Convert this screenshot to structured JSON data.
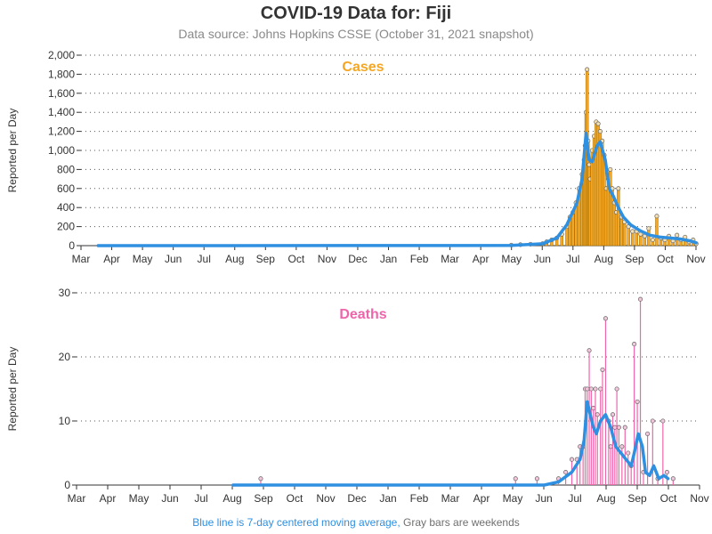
{
  "page": {
    "title": "COVID-19 Data for: Fiji",
    "subtitle": "Data source: Johns Hopkins CSSE (October 31, 2021 snapshot)",
    "footnote_blue": "Blue line is 7-day centered moving average,",
    "footnote_gray": "Gray bars are weekends"
  },
  "colors": {
    "cases": "#f5a623",
    "deaths": "#ee66aa",
    "moving_average": "#2f8fe0",
    "weekend": "#888888",
    "axis": "#333333"
  },
  "chart_data": [
    {
      "type": "bar",
      "title": "Cases",
      "ylabel": "Reported per Day",
      "ylim": [
        0,
        2000
      ],
      "yticks": [
        0,
        200,
        400,
        600,
        800,
        1000,
        1200,
        1400,
        1600,
        1800,
        2000
      ],
      "ytick_labels": [
        "0",
        "200",
        "400",
        "600",
        "800",
        "1,000",
        "1,200",
        "1,400",
        "1,600",
        "1,800",
        "2,000"
      ],
      "xtick_labels": [
        "Mar",
        "Apr",
        "May",
        "Jun",
        "Jul",
        "Aug",
        "Sep",
        "Oct",
        "Nov",
        "Dec",
        "Jan",
        "Feb",
        "Mar",
        "Apr",
        "May",
        "Jun",
        "Jul",
        "Aug",
        "Sep",
        "Oct",
        "Nov"
      ],
      "grid": "horizontal dotted",
      "daily_bars": [
        {
          "date": "2021-05-01",
          "value": 5
        },
        {
          "date": "2021-05-10",
          "value": 10
        },
        {
          "date": "2021-05-20",
          "value": 15
        },
        {
          "date": "2021-06-01",
          "value": 20
        },
        {
          "date": "2021-06-05",
          "value": 40
        },
        {
          "date": "2021-06-10",
          "value": 60
        },
        {
          "date": "2021-06-15",
          "value": 80
        },
        {
          "date": "2021-06-20",
          "value": 120
        },
        {
          "date": "2021-06-25",
          "value": 200
        },
        {
          "date": "2021-06-28",
          "value": 300
        },
        {
          "date": "2021-07-01",
          "value": 350
        },
        {
          "date": "2021-07-04",
          "value": 450
        },
        {
          "date": "2021-07-07",
          "value": 600
        },
        {
          "date": "2021-07-10",
          "value": 750
        },
        {
          "date": "2021-07-12",
          "value": 900
        },
        {
          "date": "2021-07-13",
          "value": 1050
        },
        {
          "date": "2021-07-14",
          "value": 1400
        },
        {
          "date": "2021-07-15",
          "value": 1850
        },
        {
          "date": "2021-07-16",
          "value": 1100
        },
        {
          "date": "2021-07-17",
          "value": 850
        },
        {
          "date": "2021-07-18",
          "value": 700
        },
        {
          "date": "2021-07-20",
          "value": 1000
        },
        {
          "date": "2021-07-22",
          "value": 1150
        },
        {
          "date": "2021-07-24",
          "value": 1300
        },
        {
          "date": "2021-07-26",
          "value": 1280
        },
        {
          "date": "2021-07-28",
          "value": 1200
        },
        {
          "date": "2021-07-30",
          "value": 1100
        },
        {
          "date": "2021-08-01",
          "value": 950
        },
        {
          "date": "2021-08-03",
          "value": 600
        },
        {
          "date": "2021-08-05",
          "value": 700
        },
        {
          "date": "2021-08-07",
          "value": 800
        },
        {
          "date": "2021-08-09",
          "value": 600
        },
        {
          "date": "2021-08-11",
          "value": 450
        },
        {
          "date": "2021-08-13",
          "value": 350
        },
        {
          "date": "2021-08-15",
          "value": 600
        },
        {
          "date": "2021-08-18",
          "value": 300
        },
        {
          "date": "2021-08-21",
          "value": 250
        },
        {
          "date": "2021-08-25",
          "value": 200
        },
        {
          "date": "2021-08-29",
          "value": 150
        },
        {
          "date": "2021-09-02",
          "value": 150
        },
        {
          "date": "2021-09-06",
          "value": 120
        },
        {
          "date": "2021-09-10",
          "value": 100
        },
        {
          "date": "2021-09-14",
          "value": 180
        },
        {
          "date": "2021-09-18",
          "value": 60
        },
        {
          "date": "2021-09-22",
          "value": 310
        },
        {
          "date": "2021-09-26",
          "value": 80
        },
        {
          "date": "2021-09-30",
          "value": 60
        },
        {
          "date": "2021-10-04",
          "value": 100
        },
        {
          "date": "2021-10-08",
          "value": 50
        },
        {
          "date": "2021-10-12",
          "value": 110
        },
        {
          "date": "2021-10-16",
          "value": 60
        },
        {
          "date": "2021-10-20",
          "value": 90
        },
        {
          "date": "2021-10-24",
          "value": 40
        },
        {
          "date": "2021-10-28",
          "value": 60
        },
        {
          "date": "2021-10-31",
          "value": 20
        }
      ],
      "moving_average": [
        {
          "date": "2020-03-18",
          "value": 0
        },
        {
          "date": "2021-05-01",
          "value": 2
        },
        {
          "date": "2021-06-01",
          "value": 20
        },
        {
          "date": "2021-06-15",
          "value": 80
        },
        {
          "date": "2021-06-25",
          "value": 220
        },
        {
          "date": "2021-07-05",
          "value": 450
        },
        {
          "date": "2021-07-10",
          "value": 700
        },
        {
          "date": "2021-07-14",
          "value": 1180
        },
        {
          "date": "2021-07-17",
          "value": 900
        },
        {
          "date": "2021-07-20",
          "value": 880
        },
        {
          "date": "2021-07-25",
          "value": 1050
        },
        {
          "date": "2021-07-28",
          "value": 1090
        },
        {
          "date": "2021-08-02",
          "value": 900
        },
        {
          "date": "2021-08-06",
          "value": 600
        },
        {
          "date": "2021-08-10",
          "value": 520
        },
        {
          "date": "2021-08-15",
          "value": 400
        },
        {
          "date": "2021-08-20",
          "value": 300
        },
        {
          "date": "2021-08-27",
          "value": 220
        },
        {
          "date": "2021-09-05",
          "value": 160
        },
        {
          "date": "2021-09-15",
          "value": 110
        },
        {
          "date": "2021-09-25",
          "value": 90
        },
        {
          "date": "2021-10-05",
          "value": 80
        },
        {
          "date": "2021-10-15",
          "value": 70
        },
        {
          "date": "2021-10-25",
          "value": 50
        },
        {
          "date": "2021-10-31",
          "value": 30
        }
      ]
    },
    {
      "type": "bar",
      "title": "Deaths",
      "ylabel": "Reported per Day",
      "ylim": [
        0,
        30
      ],
      "yticks": [
        0,
        10,
        20,
        30
      ],
      "ytick_labels": [
        "0",
        "10",
        "20",
        "30"
      ],
      "xtick_labels": [
        "Mar",
        "Apr",
        "May",
        "Jun",
        "Jul",
        "Aug",
        "Sep",
        "Oct",
        "Nov",
        "Dec",
        "Jan",
        "Feb",
        "Mar",
        "Apr",
        "May",
        "Jun",
        "Jul",
        "Aug",
        "Sep",
        "Oct",
        "Nov"
      ],
      "grid": "horizontal dotted",
      "daily_bars": [
        {
          "date": "2020-08-28",
          "value": 1
        },
        {
          "date": "2021-05-04",
          "value": 1
        },
        {
          "date": "2021-05-25",
          "value": 1
        },
        {
          "date": "2021-06-15",
          "value": 1
        },
        {
          "date": "2021-06-22",
          "value": 2
        },
        {
          "date": "2021-06-28",
          "value": 4
        },
        {
          "date": "2021-07-03",
          "value": 4
        },
        {
          "date": "2021-07-06",
          "value": 6
        },
        {
          "date": "2021-07-09",
          "value": 6
        },
        {
          "date": "2021-07-11",
          "value": 15
        },
        {
          "date": "2021-07-13",
          "value": 15
        },
        {
          "date": "2021-07-15",
          "value": 21
        },
        {
          "date": "2021-07-17",
          "value": 15
        },
        {
          "date": "2021-07-19",
          "value": 12
        },
        {
          "date": "2021-07-21",
          "value": 15
        },
        {
          "date": "2021-07-23",
          "value": 11
        },
        {
          "date": "2021-07-26",
          "value": 15
        },
        {
          "date": "2021-07-28",
          "value": 18
        },
        {
          "date": "2021-07-31",
          "value": 26
        },
        {
          "date": "2021-08-03",
          "value": 10
        },
        {
          "date": "2021-08-05",
          "value": 6
        },
        {
          "date": "2021-08-07",
          "value": 11
        },
        {
          "date": "2021-08-09",
          "value": 9
        },
        {
          "date": "2021-08-11",
          "value": 15
        },
        {
          "date": "2021-08-13",
          "value": 9
        },
        {
          "date": "2021-08-16",
          "value": 6
        },
        {
          "date": "2021-08-19",
          "value": 9
        },
        {
          "date": "2021-08-22",
          "value": 5
        },
        {
          "date": "2021-08-25",
          "value": 3
        },
        {
          "date": "2021-08-28",
          "value": 22
        },
        {
          "date": "2021-08-31",
          "value": 13
        },
        {
          "date": "2021-09-03",
          "value": 29
        },
        {
          "date": "2021-09-06",
          "value": 2
        },
        {
          "date": "2021-09-10",
          "value": 8
        },
        {
          "date": "2021-09-15",
          "value": 10
        },
        {
          "date": "2021-09-20",
          "value": 1
        },
        {
          "date": "2021-09-25",
          "value": 10
        },
        {
          "date": "2021-09-29",
          "value": 2
        },
        {
          "date": "2021-10-05",
          "value": 1
        }
      ],
      "moving_average": [
        {
          "date": "2020-08-01",
          "value": 0
        },
        {
          "date": "2021-06-01",
          "value": 0
        },
        {
          "date": "2021-06-15",
          "value": 0.5
        },
        {
          "date": "2021-06-28",
          "value": 2
        },
        {
          "date": "2021-07-06",
          "value": 4
        },
        {
          "date": "2021-07-10",
          "value": 7
        },
        {
          "date": "2021-07-13",
          "value": 13
        },
        {
          "date": "2021-07-16",
          "value": 11
        },
        {
          "date": "2021-07-19",
          "value": 9
        },
        {
          "date": "2021-07-22",
          "value": 8
        },
        {
          "date": "2021-07-26",
          "value": 10
        },
        {
          "date": "2021-07-31",
          "value": 11
        },
        {
          "date": "2021-08-05",
          "value": 9
        },
        {
          "date": "2021-08-10",
          "value": 6
        },
        {
          "date": "2021-08-15",
          "value": 5
        },
        {
          "date": "2021-08-20",
          "value": 4
        },
        {
          "date": "2021-08-25",
          "value": 3
        },
        {
          "date": "2021-08-28",
          "value": 5
        },
        {
          "date": "2021-09-01",
          "value": 8
        },
        {
          "date": "2021-09-05",
          "value": 6
        },
        {
          "date": "2021-09-08",
          "value": 2
        },
        {
          "date": "2021-09-12",
          "value": 1.5
        },
        {
          "date": "2021-09-16",
          "value": 3
        },
        {
          "date": "2021-09-21",
          "value": 1
        },
        {
          "date": "2021-09-26",
          "value": 1.5
        },
        {
          "date": "2021-09-30",
          "value": 1
        }
      ]
    }
  ]
}
